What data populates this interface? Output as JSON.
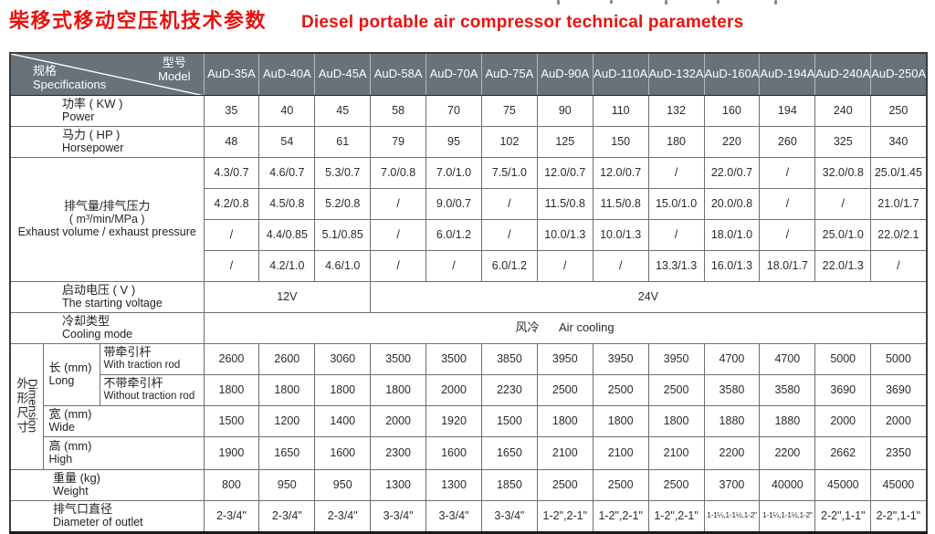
{
  "title": {
    "zh": "柴移式移动空压机技术参数",
    "en": "Diesel portable air compressor technical parameters"
  },
  "colors": {
    "title_red": "#e8120e",
    "header_bg": "#68727b",
    "border_gray": "#6e6e6e"
  },
  "table": {
    "corner": {
      "spec_zh": "规格",
      "spec_en": "Specifications",
      "model_zh": "型号",
      "model_en": "Model"
    },
    "models": [
      "AuD-35A",
      "AuD-40A",
      "AuD-45A",
      "AuD-58A",
      "AuD-70A",
      "AuD-75A",
      "AuD-90A",
      "AuD-110A",
      "AuD-132A",
      "AuD-160A",
      "AuD-194A",
      "AuD-240A",
      "AuD-250A"
    ],
    "rows": {
      "power": {
        "label_zh": "功率 ( KW )",
        "label_en": "Power",
        "values": [
          "35",
          "40",
          "45",
          "58",
          "70",
          "75",
          "90",
          "110",
          "132",
          "160",
          "194",
          "240",
          "250"
        ]
      },
      "horsepower": {
        "label_zh": "马力 ( HP )",
        "label_en": "Horsepower",
        "values": [
          "48",
          "54",
          "61",
          "79",
          "95",
          "102",
          "125",
          "150",
          "180",
          "220",
          "260",
          "325",
          "340"
        ]
      },
      "exhaust": {
        "label_zh": "排气量/排气压力",
        "label_unit": "( m³/min/MPa )",
        "label_en": "Exhaust volume / exhaust pressure",
        "rows": [
          [
            "4.3/0.7",
            "4.6/0.7",
            "5.3/0.7",
            "7.0/0.8",
            "7.0/1.0",
            "7.5/1.0",
            "12.0/0.7",
            "12.0/0.7",
            "/",
            "22.0/0.7",
            "/",
            "32.0/0.8",
            "25.0/1.45"
          ],
          [
            "4.2/0.8",
            "4.5/0.8",
            "5.2/0.8",
            "/",
            "9.0/0.7",
            "/",
            "11.5/0.8",
            "11.5/0.8",
            "15.0/1.0",
            "20.0/0.8",
            "/",
            "/",
            "21.0/1.7"
          ],
          [
            "/",
            "4.4/0.85",
            "5.1/0.85",
            "/",
            "6.0/1.2",
            "/",
            "10.0/1.3",
            "10.0/1.3",
            "/",
            "18.0/1.0",
            "/",
            "25.0/1.0",
            "22.0/2.1"
          ],
          [
            "/",
            "4.2/1.0",
            "4.6/1.0",
            "/",
            "/",
            "6.0/1.2",
            "/",
            "/",
            "13.3/1.3",
            "16.0/1.3",
            "18.0/1.7",
            "22.0/1.3",
            "/"
          ]
        ]
      },
      "voltage": {
        "label_zh": "启动电压 ( V )",
        "label_en": "The starting voltage",
        "value_left": "12V",
        "value_right": "24V"
      },
      "cooling": {
        "label_zh": "冷却类型",
        "label_en": "Cooling mode",
        "value_zh": "风冷",
        "value_en": "Air cooling"
      },
      "dimension": {
        "side_zh": "外形尺寸",
        "side_en": "Dimension",
        "long": {
          "label_zh": "长 (mm)",
          "label_en": "Long",
          "with_rod": {
            "label_zh": "带牵引杆",
            "label_en": "With traction rod",
            "values": [
              "2600",
              "2600",
              "3060",
              "3500",
              "3500",
              "3850",
              "3950",
              "3950",
              "3950",
              "4700",
              "4700",
              "5000",
              "5000"
            ]
          },
          "without_rod": {
            "label_zh": "不带牵引杆",
            "label_en": "Without traction rod",
            "values": [
              "1800",
              "1800",
              "1800",
              "1800",
              "2000",
              "2230",
              "2500",
              "2500",
              "2500",
              "3580",
              "3580",
              "3690",
              "3690"
            ]
          }
        },
        "wide": {
          "label_zh": "宽 (mm)",
          "label_en": "Wide",
          "values": [
            "1500",
            "1200",
            "1400",
            "2000",
            "1920",
            "1500",
            "1800",
            "1800",
            "1800",
            "1880",
            "1880",
            "2000",
            "2000"
          ]
        },
        "high": {
          "label_zh": "高 (mm)",
          "label_en": "High",
          "values": [
            "1900",
            "1650",
            "1600",
            "2300",
            "1600",
            "1650",
            "2100",
            "2100",
            "2100",
            "2200",
            "2200",
            "2662",
            "2350"
          ]
        }
      },
      "weight": {
        "label_zh": "重量 (kg)",
        "label_en": "Weight",
        "values": [
          "800",
          "950",
          "950",
          "1300",
          "1300",
          "1850",
          "2500",
          "2500",
          "2500",
          "3700",
          "40000",
          "45000",
          "45000"
        ]
      },
      "outlet": {
        "label_zh": "排气口直径",
        "label_en": "Diameter of outlet",
        "values": [
          "2-3/4\"",
          "2-3/4\"",
          "2-3/4\"",
          "3-3/4\"",
          "3-3/4\"",
          "3-3/4\"",
          "1-2\",2-1\"",
          "1-2\",2-1\"",
          "1-2\",2-1\"",
          "1-1¼,1-1½,1-2\"",
          "1-1¼,1-1½,1-2\"",
          "2-2\",1-1\"",
          "2-2\",1-1\""
        ]
      }
    }
  }
}
